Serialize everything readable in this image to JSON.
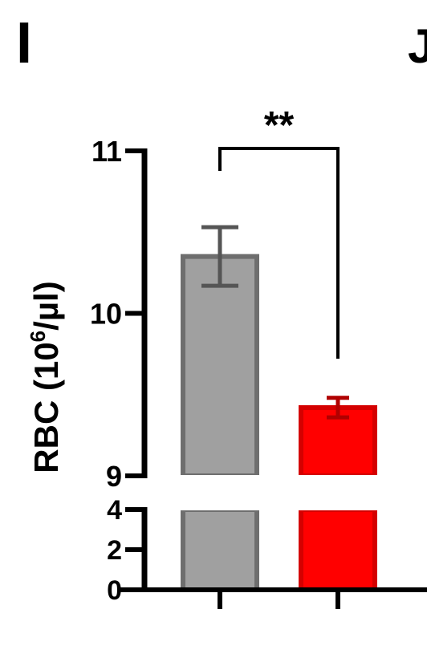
{
  "panel_label": "I",
  "next_panel_label": "J",
  "chart_data": {
    "type": "bar",
    "ylabel": "RBC (10",
    "ylabel_sup": "6",
    "ylabel_tail": "/µl)",
    "axis_break": true,
    "upper_segment": {
      "ylim": [
        9,
        11
      ],
      "ticks": [
        9,
        10,
        11
      ]
    },
    "lower_segment": {
      "ylim": [
        0,
        4
      ],
      "ticks": [
        0,
        2,
        4
      ]
    },
    "significance": "**",
    "categories": [
      "",
      ""
    ],
    "bars": [
      {
        "value": 10.35,
        "error": 0.18,
        "color": "#a0a0a0",
        "edge": "#6e6e6e"
      },
      {
        "value": 9.42,
        "error": 0.06,
        "color": "#ff0000",
        "edge": "#d40000"
      }
    ]
  }
}
